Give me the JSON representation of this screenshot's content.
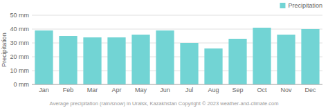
{
  "chart_data": {
    "type": "bar",
    "categories": [
      "Jan",
      "Feb",
      "Mar",
      "Apr",
      "May",
      "Jun",
      "Jul",
      "Aug",
      "Sep",
      "Oct",
      "Nov",
      "Dec"
    ],
    "series": [
      {
        "name": "Precipitation",
        "color": "#72d4d4",
        "values": [
          39,
          35,
          34,
          34,
          36,
          39,
          30,
          26,
          33,
          41,
          36,
          40
        ]
      }
    ],
    "y_label": "Precipitation",
    "caption": "Average precipitation (rain/snow) in Uralsk, Kazakhstan   Copyright © 2023  weather-and-climate.com",
    "ylim": [
      0,
      50
    ],
    "yticks": [
      {
        "value": 0,
        "label": "0 mm"
      },
      {
        "value": 10,
        "label": "10 mm"
      },
      {
        "value": 20,
        "label": "20 mm"
      },
      {
        "value": 30,
        "label": "30 mm"
      },
      {
        "value": 40,
        "label": "40 mm"
      },
      {
        "value": 50,
        "label": "50 mm"
      }
    ],
    "grid": true,
    "legend": "top-right"
  }
}
